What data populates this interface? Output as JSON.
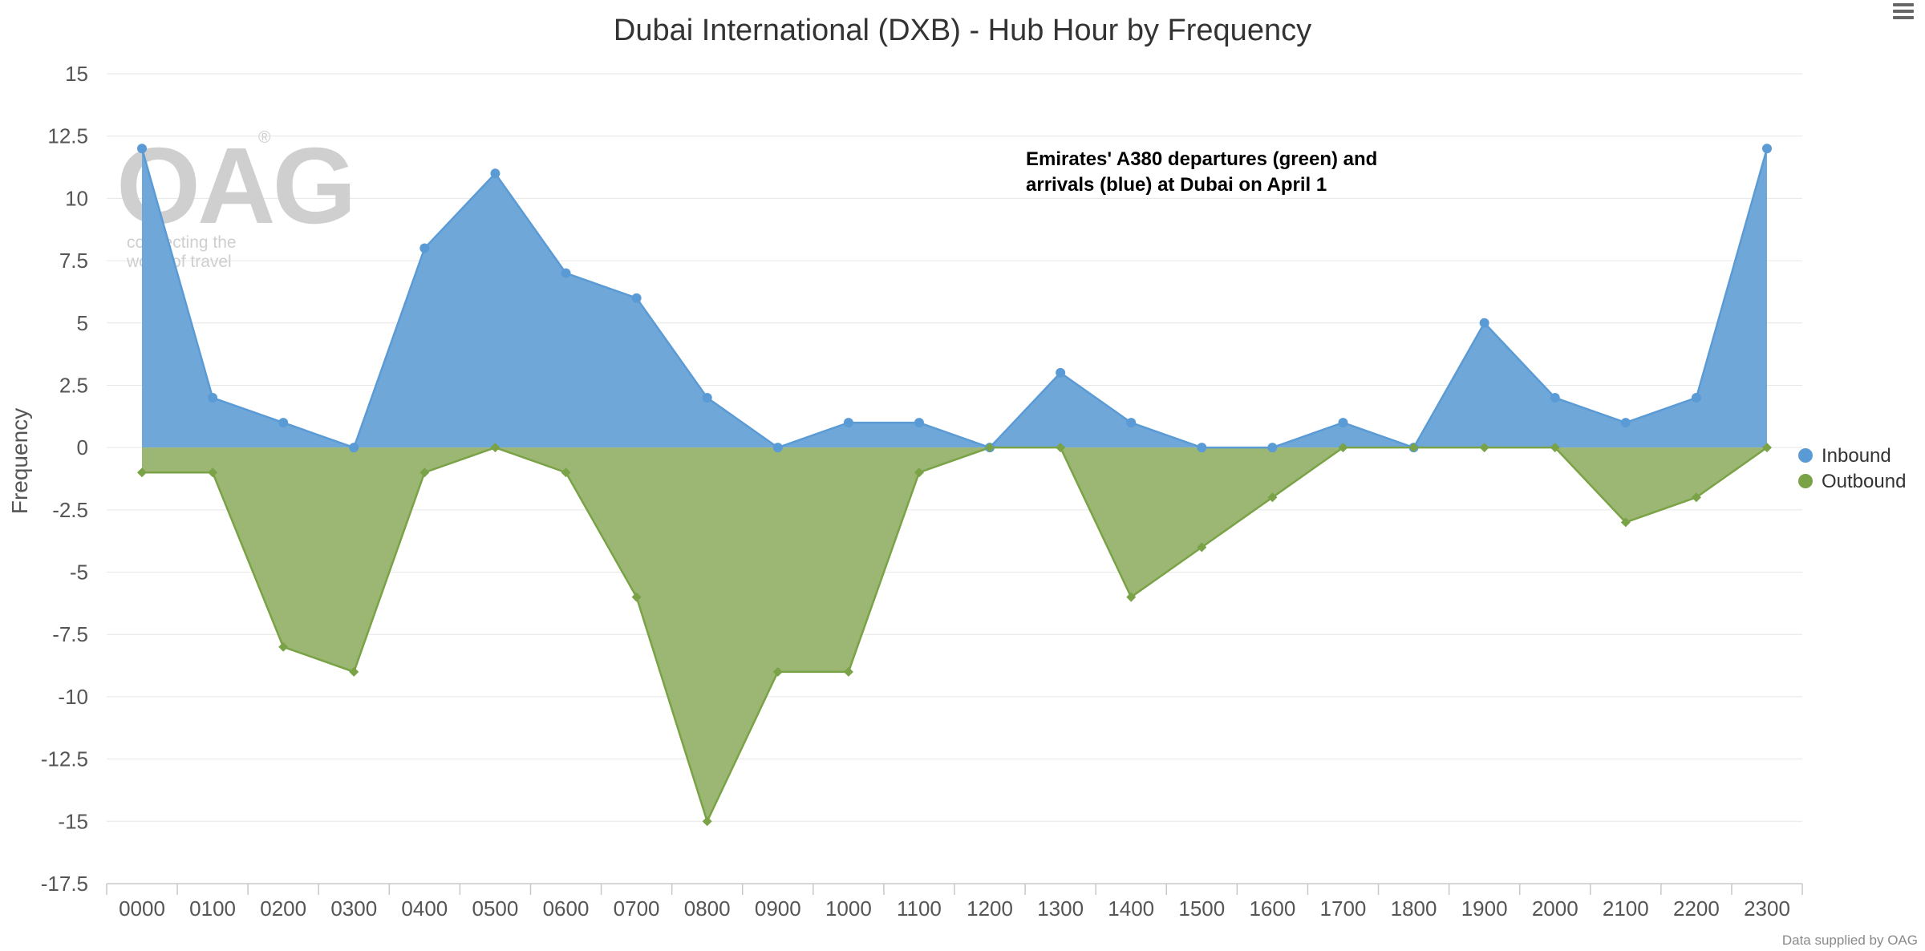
{
  "chart_data": {
    "type": "area",
    "title": "Dubai International (DXB) - Hub Hour by Frequency",
    "xlabel": "",
    "ylabel": "Frequency",
    "categories": [
      "0000",
      "0100",
      "0200",
      "0300",
      "0400",
      "0500",
      "0600",
      "0700",
      "0800",
      "0900",
      "1000",
      "1100",
      "1200",
      "1300",
      "1400",
      "1500",
      "1600",
      "1700",
      "1800",
      "1900",
      "2000",
      "2100",
      "2200",
      "2300"
    ],
    "series": [
      {
        "name": "Inbound",
        "color": "#5b9bd5",
        "values": [
          12,
          2,
          1,
          0,
          8,
          11,
          7,
          6,
          2,
          0,
          1,
          1,
          0,
          3,
          1,
          0,
          0,
          1,
          0,
          5,
          2,
          1,
          2,
          12
        ]
      },
      {
        "name": "Outbound",
        "color": "#7aa246",
        "values": [
          -1,
          -1,
          -8,
          -9,
          -1,
          0,
          -1,
          -6,
          -15,
          -9,
          -9,
          -1,
          0,
          0,
          -6,
          -4,
          -2,
          0,
          0,
          0,
          0,
          -3,
          -2,
          0
        ]
      }
    ],
    "ylim": [
      -17.5,
      15
    ],
    "yticks": [
      15,
      12.5,
      10,
      7.5,
      5,
      2.5,
      0,
      -2.5,
      -5,
      -7.5,
      -10,
      -12.5,
      -15,
      -17.5
    ],
    "ytick_labels": [
      "15",
      "12.5",
      "10",
      "7.5",
      "5",
      "2.5",
      "0",
      "-2.5",
      "-5",
      "-7.5",
      "-10",
      "-12.5",
      "-15",
      "-17.5"
    ],
    "grid": true,
    "legend_position": "right",
    "annotation": [
      "Emirates' A380 departures (green) and",
      "arrivals (blue) at Dubai on April 1"
    ],
    "credit": "Data supplied by OAG"
  },
  "watermark": {
    "logo_text": "OAG",
    "registered": "®",
    "tagline": [
      "connecting the",
      "world of travel"
    ]
  },
  "menu": {
    "icon": "hamburger-menu-icon"
  }
}
